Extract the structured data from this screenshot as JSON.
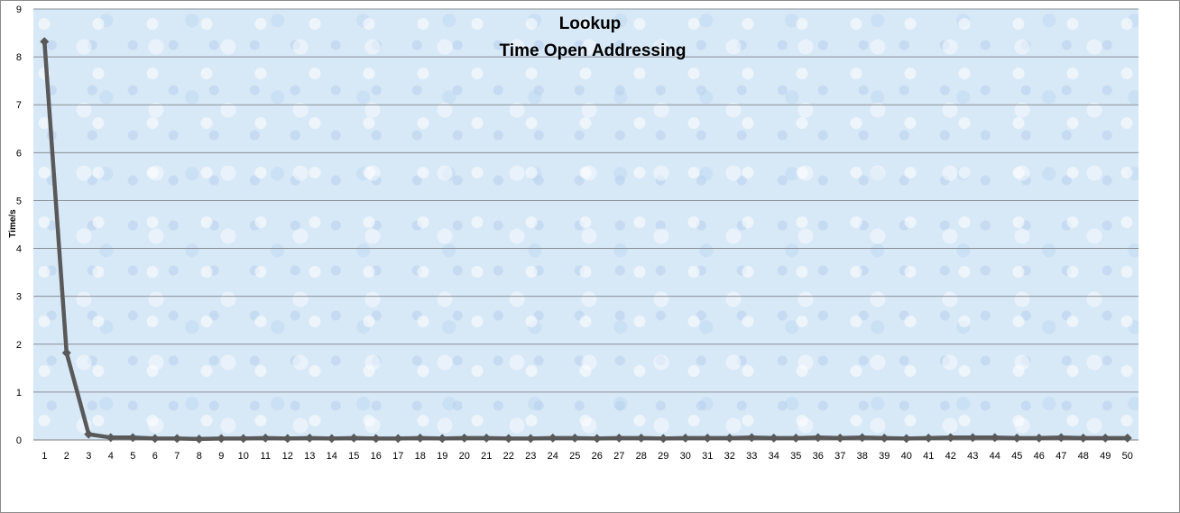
{
  "chart_data": {
    "type": "line",
    "title_lines": [
      "Lookup",
      "Time Open Addressing"
    ],
    "xlabel": "",
    "ylabel": "Time/s",
    "ylim": [
      0,
      9
    ],
    "y_ticks": [
      0,
      1,
      2,
      3,
      4,
      5,
      6,
      7,
      8,
      9
    ],
    "grid": true,
    "legend": "none",
    "line_color": "#595959",
    "x": [
      1,
      2,
      3,
      4,
      5,
      6,
      7,
      8,
      9,
      10,
      11,
      12,
      13,
      14,
      15,
      16,
      17,
      18,
      19,
      20,
      21,
      22,
      23,
      24,
      25,
      26,
      27,
      28,
      29,
      30,
      31,
      32,
      33,
      34,
      35,
      36,
      37,
      38,
      39,
      40,
      41,
      42,
      43,
      44,
      45,
      46,
      47,
      48,
      49,
      50
    ],
    "series": [
      {
        "values": [
          8.32,
          1.82,
          0.12,
          0.05,
          0.05,
          0.03,
          0.03,
          0.02,
          0.03,
          0.03,
          0.04,
          0.03,
          0.04,
          0.03,
          0.04,
          0.03,
          0.03,
          0.04,
          0.03,
          0.04,
          0.04,
          0.03,
          0.03,
          0.04,
          0.04,
          0.03,
          0.04,
          0.04,
          0.03,
          0.04,
          0.04,
          0.04,
          0.05,
          0.04,
          0.04,
          0.05,
          0.04,
          0.05,
          0.04,
          0.03,
          0.04,
          0.05,
          0.05,
          0.05,
          0.04,
          0.04,
          0.05,
          0.04,
          0.04,
          0.04
        ]
      }
    ]
  }
}
